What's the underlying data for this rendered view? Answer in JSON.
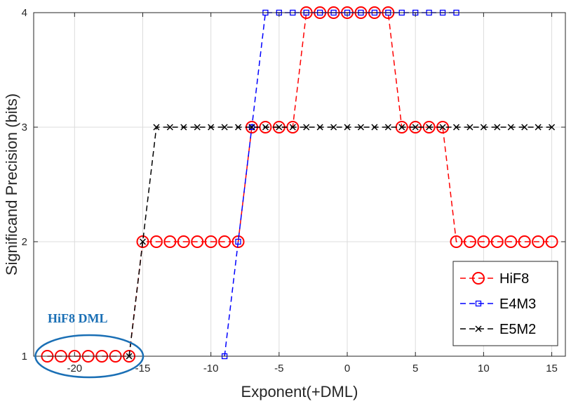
{
  "chart_data": {
    "type": "line",
    "xlabel": "Exponent(+DML)",
    "ylabel": "Significand Precision (bits)",
    "xlim": [
      -23,
      16
    ],
    "ylim": [
      1,
      4
    ],
    "xticks": [
      -20,
      -15,
      -10,
      -5,
      0,
      5,
      10,
      15
    ],
    "yticks": [
      1,
      2,
      3,
      4
    ],
    "grid": true,
    "legend_position": "bottom-right",
    "annotation": {
      "text": "HiF8 DML",
      "color": "#1a6fb5",
      "shape": "ellipse"
    },
    "series": [
      {
        "name": "HiF8",
        "color": "#ff0000",
        "marker": "circle",
        "line": "dashed",
        "x": [
          -22,
          -21,
          -20,
          -19,
          -18,
          -17,
          -16,
          -15,
          -14,
          -13,
          -12,
          -11,
          -10,
          -9,
          -8,
          -7,
          -6,
          -5,
          -4,
          -3,
          -2,
          -1,
          0,
          1,
          2,
          3,
          4,
          5,
          6,
          7,
          8,
          9,
          10,
          11,
          12,
          13,
          14,
          15
        ],
        "y": [
          1,
          1,
          1,
          1,
          1,
          1,
          1,
          2,
          2,
          2,
          2,
          2,
          2,
          2,
          2,
          3,
          3,
          3,
          3,
          4,
          4,
          4,
          4,
          4,
          4,
          4,
          3,
          3,
          3,
          3,
          2,
          2,
          2,
          2,
          2,
          2,
          2,
          2
        ]
      },
      {
        "name": "E4M3",
        "color": "#0000ff",
        "marker": "square",
        "line": "dashed",
        "x": [
          -9,
          -8,
          -7,
          -6,
          -5,
          -4,
          -3,
          -2,
          -1,
          0,
          1,
          2,
          3,
          4,
          5,
          6,
          7,
          8
        ],
        "y": [
          1,
          2,
          3,
          4,
          4,
          4,
          4,
          4,
          4,
          4,
          4,
          4,
          4,
          4,
          4,
          4,
          4,
          4
        ]
      },
      {
        "name": "E5M2",
        "color": "#000000",
        "marker": "x",
        "line": "dashed",
        "x": [
          -16,
          -15,
          -14,
          -13,
          -12,
          -11,
          -10,
          -9,
          -8,
          -7,
          -6,
          -5,
          -4,
          -3,
          -2,
          -1,
          0,
          1,
          2,
          3,
          4,
          5,
          6,
          7,
          8,
          9,
          10,
          11,
          12,
          13,
          14,
          15
        ],
        "y": [
          1,
          2,
          3,
          3,
          3,
          3,
          3,
          3,
          3,
          3,
          3,
          3,
          3,
          3,
          3,
          3,
          3,
          3,
          3,
          3,
          3,
          3,
          3,
          3,
          3,
          3,
          3,
          3,
          3,
          3,
          3,
          3
        ]
      }
    ]
  }
}
